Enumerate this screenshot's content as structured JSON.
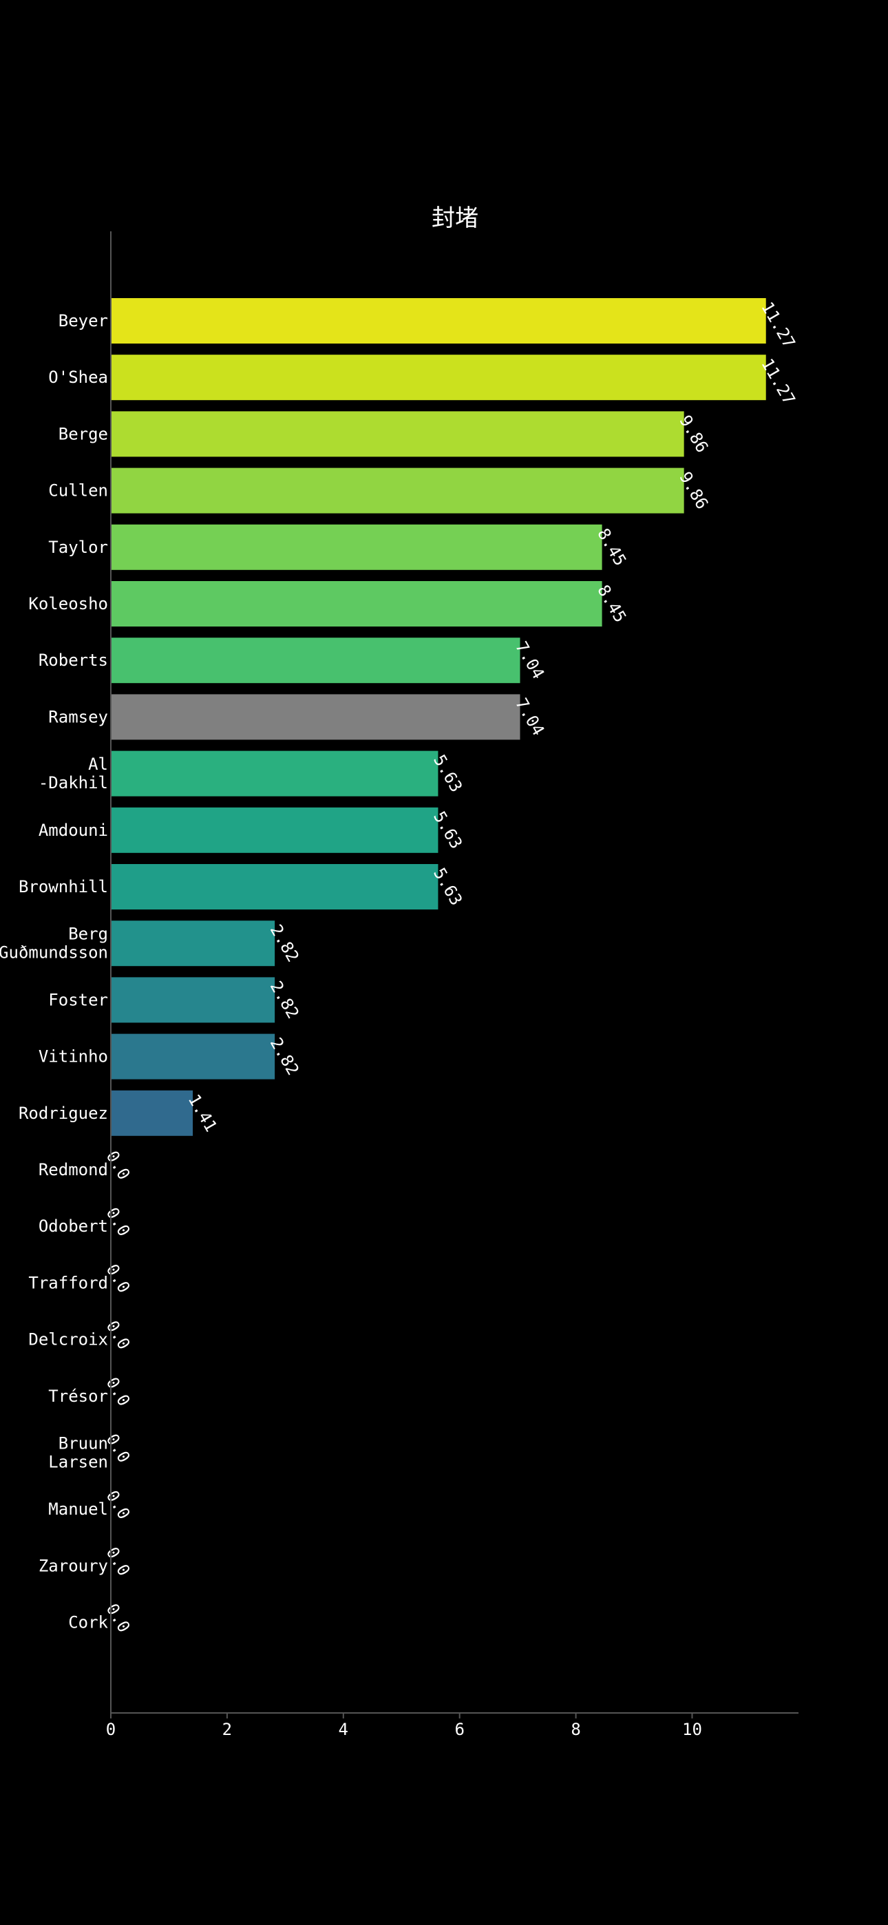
{
  "chart_data": {
    "type": "bar",
    "orientation": "horizontal",
    "title": "封堵",
    "xlabel": "",
    "ylabel": "",
    "xlim": [
      0,
      11.83
    ],
    "x_ticks": [
      0,
      2,
      4,
      6,
      8,
      10
    ],
    "grid": false,
    "legend": "none",
    "categories": [
      [
        "Beyer"
      ],
      [
        "O'Shea"
      ],
      [
        "Berge"
      ],
      [
        "Cullen"
      ],
      [
        "Taylor"
      ],
      [
        "Koleosho"
      ],
      [
        "Roberts"
      ],
      [
        "Ramsey"
      ],
      [
        "Al",
        "-Dakhil"
      ],
      [
        "Amdouni"
      ],
      [
        "Brownhill"
      ],
      [
        "Berg",
        "Guðmundsson"
      ],
      [
        "Foster"
      ],
      [
        "Vitinho"
      ],
      [
        "Rodriguez"
      ],
      [
        "Redmond"
      ],
      [
        "Odobert"
      ],
      [
        "Trafford"
      ],
      [
        "Delcroix"
      ],
      [
        "Trésor"
      ],
      [
        "Bruun",
        "Larsen"
      ],
      [
        "Manuel"
      ],
      [
        "Zaroury"
      ],
      [
        "Cork"
      ]
    ],
    "values": [
      11.27,
      11.27,
      9.86,
      9.86,
      8.45,
      8.45,
      7.04,
      7.04,
      5.63,
      5.63,
      5.63,
      2.82,
      2.82,
      2.82,
      1.41,
      0.0,
      0.0,
      0.0,
      0.0,
      0.0,
      0.0,
      0.0,
      0.0,
      0.0
    ],
    "value_labels": [
      "11.27",
      "11.27",
      "9.86",
      "9.86",
      "8.45",
      "8.45",
      "7.04",
      "7.04",
      "5.63",
      "5.63",
      "5.63",
      "2.82",
      "2.82",
      "2.82",
      "1.41",
      "0.0",
      "0.0",
      "0.0",
      "0.0",
      "0.0",
      "0.0",
      "0.0",
      "0.0",
      "0.0"
    ],
    "colors": [
      "#e4e419",
      "#cbe11e",
      "#addc30",
      "#91d542",
      "#75d054",
      "#5ec962",
      "#48c16e",
      "#808080",
      "#2ab07f",
      "#20a486",
      "#1f9e89",
      "#22928c",
      "#26868e",
      "#2b788e",
      "#306a8e",
      "#000000",
      "#000000",
      "#000000",
      "#000000",
      "#000000",
      "#000000",
      "#000000",
      "#000000",
      "#000000"
    ],
    "background": "#000000",
    "text_color": "#ffffff",
    "axis_color": "#555555"
  }
}
